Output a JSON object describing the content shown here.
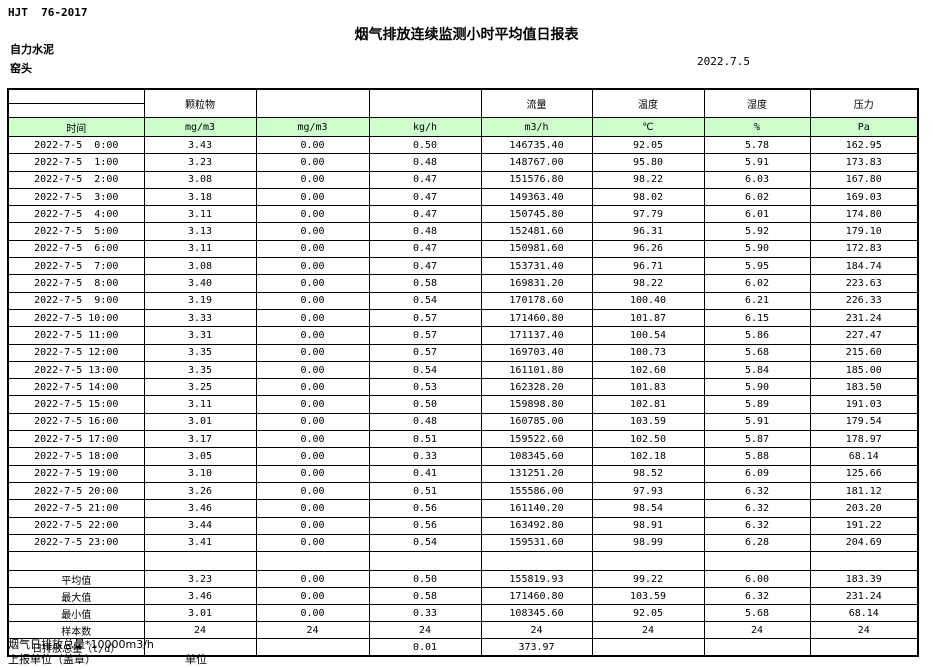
{
  "header": {
    "standard": "HJT  76-2017",
    "title": "烟气排放连续监测小时平均值日报表",
    "company": "自力水泥",
    "station": "窑头",
    "date": "2022.7.5"
  },
  "table": {
    "group_headers": [
      "",
      "颗粒物",
      "",
      "",
      "流量",
      "温度",
      "湿度",
      "压力"
    ],
    "unit_row": [
      "时间",
      "mg/m3",
      "mg/m3",
      "kg/h",
      "m3/h",
      "℃",
      "%",
      "Pa"
    ],
    "rows": [
      [
        "2022-7-5  0:00",
        "3.43",
        "0.00",
        "0.50",
        "146735.40",
        "92.05",
        "5.78",
        "162.95"
      ],
      [
        "2022-7-5  1:00",
        "3.23",
        "0.00",
        "0.48",
        "148767.00",
        "95.80",
        "5.91",
        "173.83"
      ],
      [
        "2022-7-5  2:00",
        "3.08",
        "0.00",
        "0.47",
        "151576.80",
        "98.22",
        "6.03",
        "167.80"
      ],
      [
        "2022-7-5  3:00",
        "3.18",
        "0.00",
        "0.47",
        "149363.40",
        "98.02",
        "6.02",
        "169.03"
      ],
      [
        "2022-7-5  4:00",
        "3.11",
        "0.00",
        "0.47",
        "150745.80",
        "97.79",
        "6.01",
        "174.80"
      ],
      [
        "2022-7-5  5:00",
        "3.13",
        "0.00",
        "0.48",
        "152481.60",
        "96.31",
        "5.92",
        "179.10"
      ],
      [
        "2022-7-5  6:00",
        "3.11",
        "0.00",
        "0.47",
        "150981.60",
        "96.26",
        "5.90",
        "172.83"
      ],
      [
        "2022-7-5  7:00",
        "3.08",
        "0.00",
        "0.47",
        "153731.40",
        "96.71",
        "5.95",
        "184.74"
      ],
      [
        "2022-7-5  8:00",
        "3.40",
        "0.00",
        "0.58",
        "169831.20",
        "98.22",
        "6.02",
        "223.63"
      ],
      [
        "2022-7-5  9:00",
        "3.19",
        "0.00",
        "0.54",
        "170178.60",
        "100.40",
        "6.21",
        "226.33"
      ],
      [
        "2022-7-5 10:00",
        "3.33",
        "0.00",
        "0.57",
        "171460.80",
        "101.87",
        "6.15",
        "231.24"
      ],
      [
        "2022-7-5 11:00",
        "3.31",
        "0.00",
        "0.57",
        "171137.40",
        "100.54",
        "5.86",
        "227.47"
      ],
      [
        "2022-7-5 12:00",
        "3.35",
        "0.00",
        "0.57",
        "169703.40",
        "100.73",
        "5.68",
        "215.60"
      ],
      [
        "2022-7-5 13:00",
        "3.35",
        "0.00",
        "0.54",
        "161101.80",
        "102.60",
        "5.84",
        "185.00"
      ],
      [
        "2022-7-5 14:00",
        "3.25",
        "0.00",
        "0.53",
        "162328.20",
        "101.83",
        "5.90",
        "183.50"
      ],
      [
        "2022-7-5 15:00",
        "3.11",
        "0.00",
        "0.50",
        "159898.80",
        "102.81",
        "5.89",
        "191.03"
      ],
      [
        "2022-7-5 16:00",
        "3.01",
        "0.00",
        "0.48",
        "160785.00",
        "103.59",
        "5.91",
        "179.54"
      ],
      [
        "2022-7-5 17:00",
        "3.17",
        "0.00",
        "0.51",
        "159522.60",
        "102.50",
        "5.87",
        "178.97"
      ],
      [
        "2022-7-5 18:00",
        "3.05",
        "0.00",
        "0.33",
        "108345.60",
        "102.18",
        "5.88",
        "68.14"
      ],
      [
        "2022-7-5 19:00",
        "3.10",
        "0.00",
        "0.41",
        "131251.20",
        "98.52",
        "6.09",
        "125.66"
      ],
      [
        "2022-7-5 20:00",
        "3.26",
        "0.00",
        "0.51",
        "155586.00",
        "97.93",
        "6.32",
        "181.12"
      ],
      [
        "2022-7-5 21:00",
        "3.46",
        "0.00",
        "0.56",
        "161140.20",
        "98.54",
        "6.32",
        "203.20"
      ],
      [
        "2022-7-5 22:00",
        "3.44",
        "0.00",
        "0.56",
        "163492.80",
        "98.91",
        "6.32",
        "191.22"
      ],
      [
        "2022-7-5 23:00",
        "3.41",
        "0.00",
        "0.54",
        "159531.60",
        "98.99",
        "6.28",
        "204.69"
      ]
    ],
    "summary_rows": [
      [
        "平均值",
        "3.23",
        "0.00",
        "0.50",
        "155819.93",
        "99.22",
        "6.00",
        "183.39"
      ],
      [
        "最大值",
        "3.46",
        "0.00",
        "0.58",
        "171460.80",
        "103.59",
        "6.32",
        "231.24"
      ],
      [
        "最小值",
        "3.01",
        "0.00",
        "0.33",
        "108345.60",
        "92.05",
        "5.68",
        "68.14"
      ],
      [
        "样本数",
        "24",
        "24",
        "24",
        "24",
        "24",
        "24",
        "24"
      ],
      [
        "日排放总量（t/d）",
        "",
        "",
        "0.01",
        "373.97",
        "",
        "",
        ""
      ]
    ]
  },
  "footer": {
    "note": "烟气日排放总量*10000m3/h",
    "report_unit_label": "上报单位（盖章）",
    "unit_label": "单位"
  },
  "colors": {
    "header_green": "#ccffcc",
    "border": "#000000"
  }
}
